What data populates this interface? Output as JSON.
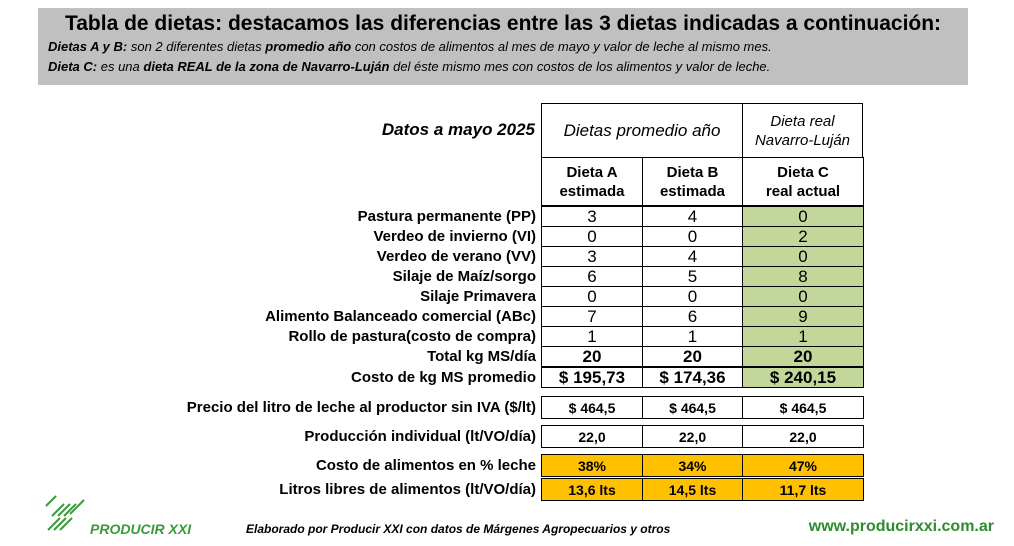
{
  "header": {
    "title": "Tabla de dietas: destacamos las diferencias entre las 3 dietas indicadas a continuación:",
    "line1": [
      {
        "text": "Dietas A y B:",
        "bold": true
      },
      {
        "text": " son 2 diferentes dietas ",
        "bold": false
      },
      {
        "text": "promedio año",
        "bold": true
      },
      {
        "text": " con costos de alimentos al mes de mayo y valor de leche al mismo mes.",
        "bold": false
      }
    ],
    "line2": [
      {
        "text": "Dieta C:",
        "bold": true
      },
      {
        "text": " es una ",
        "bold": false
      },
      {
        "text": "dieta REAL de la zona de Navarro-Luján",
        "bold": true
      },
      {
        "text": " del éste mismo mes con costos de los alimentos y valor de leche.",
        "bold": false
      }
    ]
  },
  "table": {
    "corner": "Datos a mayo 2025",
    "group": "Dietas promedio año",
    "real": [
      "Dieta real",
      "Navarro-Luján"
    ],
    "columns": [
      [
        "Dieta A",
        "estimada"
      ],
      [
        "Dieta B",
        "estimada"
      ],
      [
        "Dieta C",
        "real actual"
      ]
    ],
    "diet_rows": [
      {
        "label": "Pastura permanente (PP)",
        "values": [
          3,
          4,
          0
        ]
      },
      {
        "label": "Verdeo de invierno (VI)",
        "values": [
          0,
          0,
          2
        ]
      },
      {
        "label": "Verdeo de verano (VV)",
        "values": [
          3,
          4,
          0
        ]
      },
      {
        "label": "Silaje de Maíz/sorgo",
        "values": [
          6,
          5,
          8
        ]
      },
      {
        "label": "Silaje Primavera",
        "values": [
          0,
          0,
          0
        ]
      },
      {
        "label": "Alimento Balanceado comercial (ABc)",
        "values": [
          7,
          6,
          9
        ]
      },
      {
        "label": "Rollo de pastura(costo de compra)",
        "values": [
          1,
          1,
          1
        ]
      }
    ],
    "summary_rows": [
      {
        "label": "Total kg MS/día",
        "values": [
          20,
          20,
          20
        ]
      },
      {
        "label": "Costo de kg MS promedio",
        "values": [
          "$ 195,73",
          "$ 174,36",
          "$ 240,15"
        ]
      }
    ],
    "price_rows": [
      {
        "label": "Precio del litro de leche al productor sin IVA ($/lt)",
        "values": [
          "$ 464,5",
          "$ 464,5",
          "$ 464,5"
        ]
      },
      {
        "label": "Producción individual (lt/VO/día)",
        "values": [
          "22,0",
          "22,0",
          "22,0"
        ]
      }
    ],
    "percent_rows": [
      {
        "label": "Costo de alimentos en % leche",
        "values": [
          "38%",
          "34%",
          "47%"
        ]
      },
      {
        "label": "Litros libres de alimentos (lt/VO/día)",
        "values": [
          "13,6 lts",
          "14,5 lts",
          "11,7 lts"
        ]
      }
    ],
    "highlight_color": "#c4d79b",
    "percent_color": "#ffc000"
  },
  "footer": {
    "logo": "PRODUCIR XXI",
    "credit": "Elaborado por Producir XXI con datos de Márgenes Agropecuarios y otros",
    "url": "www.producirxxi.com.ar"
  }
}
